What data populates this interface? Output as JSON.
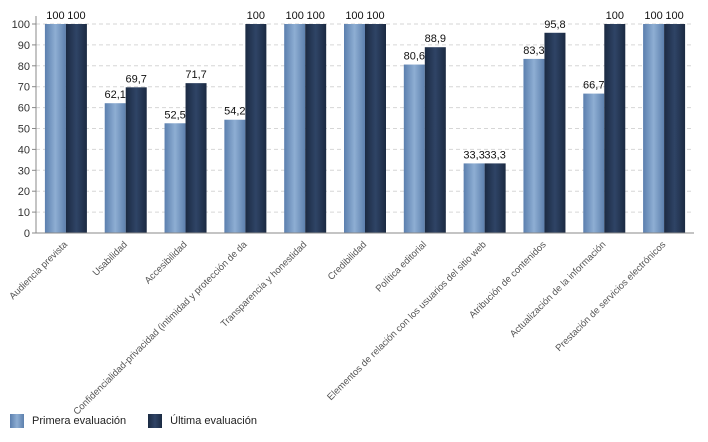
{
  "chart_data": {
    "type": "bar",
    "categories": [
      "Audiencia prevista",
      "Usabilidad",
      "Accesibilidad",
      "Confidencialidad-privacidad (intimidad y protección de da",
      "Transparencia y honestidad",
      "Credibilidad",
      "Política editorial",
      "Elementos de relación con los usuarios del sitio web",
      "Atribución de contenidos",
      "Actualización de la información",
      "Prestación de servicios electrónicos"
    ],
    "series": [
      {
        "name": "Primera evaluación",
        "values": [
          100,
          62.1,
          52.5,
          54.2,
          100,
          100,
          80.6,
          33.3,
          83.3,
          66.7,
          100
        ],
        "labels": [
          "100",
          "62,1",
          "52,5",
          "54,2",
          "100",
          "100",
          "80,6",
          "33,3",
          "83,3",
          "66,7",
          "100"
        ]
      },
      {
        "name": "Última evaluación",
        "values": [
          100,
          69.7,
          71.7,
          100,
          100,
          100,
          88.9,
          33.3,
          95.8,
          100,
          100
        ],
        "labels": [
          "100",
          "69,7",
          "71,7",
          "100",
          "100",
          "100",
          "88,9",
          "33,3",
          "95,8",
          "100",
          "100"
        ]
      }
    ],
    "yticks": [
      "0",
      "10",
      "20",
      "30",
      "40",
      "50",
      "60",
      "70",
      "80",
      "90",
      "100"
    ],
    "ylim": [
      0,
      100
    ],
    "grid": true,
    "legend": "bottom-left",
    "colors": {
      "primera": "#6f92bd",
      "ultima": "#22334f"
    }
  }
}
